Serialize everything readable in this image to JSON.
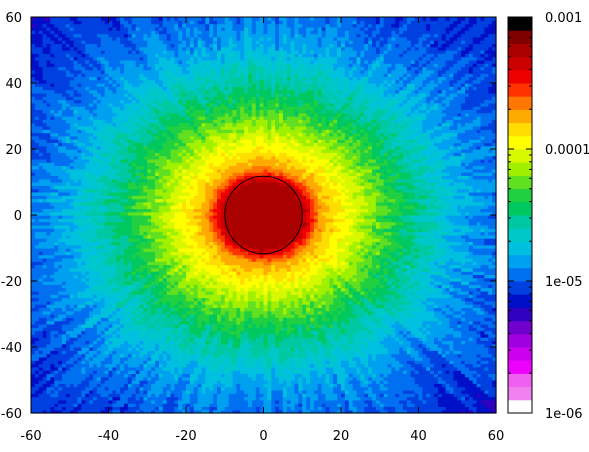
{
  "chart_data": {
    "type": "heatmap",
    "title": "",
    "xlabel": "",
    "ylabel": "",
    "xlim": [
      -60,
      60
    ],
    "ylim": [
      -60,
      60
    ],
    "x_ticks": [
      -60,
      -40,
      -20,
      0,
      20,
      40,
      60
    ],
    "y_ticks": [
      -60,
      -40,
      -20,
      0,
      20,
      40,
      60
    ],
    "x_tick_labels": [
      "-60",
      "-40",
      "-20",
      "0",
      "20",
      "40",
      "60"
    ],
    "y_tick_labels": [
      "-60",
      "-40",
      "-20",
      "0",
      "20",
      "40",
      "60"
    ],
    "color_scale": "log",
    "colorbar_range": [
      1e-06,
      0.001
    ],
    "colorbar_ticks": [
      0.001,
      0.0001,
      1e-05,
      1e-06
    ],
    "colorbar_tick_labels": [
      "0.001",
      "0.0001",
      "1e-05",
      "1e-06"
    ],
    "colorbar_colors_bottom_to_top": [
      "#ffffff",
      "#f080f0",
      "#f060f0",
      "#ee00ff",
      "#cc00ee",
      "#a000e0",
      "#7000cc",
      "#3000c0",
      "#0010c8",
      "#0040e0",
      "#0070f0",
      "#00a0f0",
      "#00c0e0",
      "#00c8c8",
      "#00c8a0",
      "#00c860",
      "#20d040",
      "#60e020",
      "#a0f000",
      "#d8f800",
      "#ffff00",
      "#ffdd00",
      "#ffaa00",
      "#ff7700",
      "#ff3300",
      "#ee0000",
      "#cc0000",
      "#aa0000",
      "#800000",
      "#000000"
    ],
    "radial_profile": {
      "r": [
        0,
        10,
        15,
        20,
        25,
        30,
        35,
        40,
        45,
        50,
        55,
        60,
        70,
        85
      ],
      "value": [
        0.0006,
        0.00055,
        0.00018,
        0.00012,
        8e-05,
        5.5e-05,
        3.8e-05,
        2.8e-05,
        2.2e-05,
        1.6e-05,
        1.35e-05,
        1.15e-05,
        9e-06,
        7e-06
      ]
    },
    "contour": {
      "shape": "circle",
      "center": [
        0,
        0
      ],
      "radius": 10,
      "color": "#000000"
    },
    "grid": false,
    "colorbar_position": "right"
  }
}
